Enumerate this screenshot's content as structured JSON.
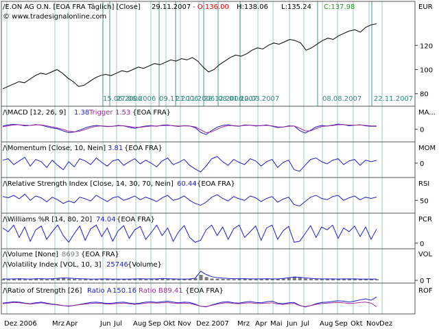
{
  "header": {
    "name": "/E.ON AG O.N. [EOA FRA Täglich] [Close]",
    "date": "29.11.2007",
    "open": "- O:136.00",
    "high": "H:138.06",
    "low": "L:135.24",
    "close": "C:137.98",
    "copyright": "© www.tradesignalonline.com",
    "currency": "EUR"
  },
  "colors": {
    "price": "#000000",
    "indicator": "#1c1ccc",
    "trigger": "#a0289a",
    "grid": "#2e8b80",
    "open": "#d40000",
    "close": "#1f9a1f",
    "value": "#1c1ccc",
    "volume_bar": "#7a7a7a"
  },
  "chart_data": {
    "type": "line",
    "time_axis": [
      "Dez 2006",
      "Mrz",
      "Apr",
      "Jun",
      "Jul",
      "Aug",
      "Sep",
      "Okt",
      "Nov",
      "Dez 2007",
      "Mrz",
      "Apr",
      "Mai",
      "Jun",
      "Jul",
      "Aug",
      "Sep",
      "Okt",
      "Nov",
      "Dez"
    ],
    "event_dates": [
      "15.06.2006",
      "27.06.2006",
      "09.11.2006",
      "21.11.2006",
      "28.12.2006",
      "08.01.2007",
      "12.03.2007",
      "08.08.2007",
      "22.11.2007"
    ],
    "panels": [
      {
        "id": "price",
        "yticks": [
          80,
          100,
          120
        ],
        "ylim": [
          73,
          144
        ],
        "series": [
          {
            "values": [
              84,
              86,
              88,
              90,
              89,
              92,
              95,
              97,
              96,
              98,
              100,
              97,
              93,
              90,
              86,
              87,
              90,
              93,
              95,
              96,
              95,
              97,
              99,
              98,
              100,
              102,
              101,
              103,
              105,
              104,
              106,
              108,
              107,
              109,
              108,
              110,
              107,
              102,
              98,
              100,
              104,
              107,
              110,
              112,
              111,
              113,
              116,
              118,
              117,
              120,
              122,
              121,
              123,
              125,
              124,
              122,
              116,
              118,
              121,
              124,
              126,
              125,
              128,
              130,
              132,
              133,
              131,
              135,
              137,
              138
            ]
          }
        ]
      },
      {
        "id": "macd",
        "label_left": "/\\MACD [12, 26, 9]",
        "label_right": "MA...",
        "indicator_text": "1.38",
        "trigger_label": "Trigger",
        "trigger_value": "1.53",
        "tag": "{EOA FRA}",
        "yticks": [
          0
        ],
        "ylim": [
          -4,
          5
        ],
        "series": [
          {
            "name": "MACD",
            "values": [
              1.5,
              2,
              2.3,
              2.1,
              1.6,
              1.8,
              2.2,
              1.9,
              1.2,
              0.6,
              0.2,
              -0.8,
              -1.6,
              -1.3,
              -0.4,
              0.6,
              1.4,
              1.8,
              1.5,
              1.2,
              1.4,
              1.8,
              1.6,
              0.9,
              0.4,
              1,
              1.5,
              1.7,
              1.4,
              1.9,
              2,
              1.6,
              1.3,
              1.7,
              1.5,
              0.8,
              -1.5,
              -2.5,
              -0.6,
              1,
              1.8,
              2.1,
              1.6,
              1.4,
              2,
              1.9,
              1.5,
              1.7,
              2,
              1.4,
              0.8,
              1,
              1.6,
              1.5,
              -0.6,
              -1.8,
              -0.5,
              1.1,
              1.8,
              1.5,
              1.9,
              2.4,
              2.2,
              1.6,
              1.9,
              2.1,
              1.6,
              1.4,
              1.38
            ]
          },
          {
            "name": "Trigger",
            "values": [
              1.2,
              1.6,
              2,
              2.1,
              1.9,
              1.8,
              2,
              2,
              1.6,
              1.1,
              0.6,
              -0.1,
              -0.9,
              -1.2,
              -0.9,
              -0.1,
              0.8,
              1.4,
              1.6,
              1.4,
              1.4,
              1.6,
              1.6,
              1.3,
              0.9,
              0.9,
              1.2,
              1.5,
              1.5,
              1.7,
              1.8,
              1.7,
              1.5,
              1.6,
              1.5,
              1.1,
              -0.3,
              -1.6,
              -1.2,
              0,
              1.1,
              1.7,
              1.7,
              1.5,
              1.8,
              1.9,
              1.7,
              1.7,
              1.8,
              1.6,
              1.1,
              1,
              1.4,
              1.5,
              0.5,
              -0.8,
              -0.8,
              0.3,
              1.3,
              1.5,
              1.7,
              2.1,
              2.2,
              1.9,
              1.9,
              2,
              1.8,
              1.6,
              1.53
            ]
          }
        ]
      },
      {
        "id": "mom",
        "label_left": "/\\Momentum [Close, 10, Nein]",
        "label_right": "MOM",
        "indicator_text": "3.81",
        "tag": "{EOA FRA}",
        "yticks": [
          0
        ],
        "ylim": [
          -14,
          14
        ],
        "series": [
          {
            "name": "Momentum",
            "values": [
              4,
              6,
              -2,
              3,
              8,
              -4,
              5,
              2,
              -6,
              4,
              -3,
              -9,
              2,
              -5,
              6,
              3,
              -2,
              7,
              1,
              -4,
              3,
              5,
              -3,
              2,
              6,
              -1,
              4,
              0,
              -5,
              3,
              7,
              -2,
              1,
              5,
              -3,
              -8,
              -12,
              -4,
              6,
              9,
              2,
              -3,
              5,
              1,
              -2,
              6,
              3,
              -4,
              2,
              5,
              -6,
              1,
              4,
              -9,
              -11,
              -3,
              5,
              7,
              2,
              -1,
              4,
              6,
              -2,
              3,
              5,
              -3,
              4,
              2,
              3.81
            ]
          }
        ]
      },
      {
        "id": "rsi",
        "label_left": "/\\Relative Strength Index [Close, 14, 30, 70, Nein]",
        "label_right": "RSI",
        "indicator_text": "60.44",
        "tag": "{EOA FRA}",
        "yticks": [
          50
        ],
        "ylim": [
          22,
          88
        ],
        "series": [
          {
            "name": "RSI",
            "values": [
              62,
              58,
              66,
              55,
              70,
              50,
              64,
              58,
              45,
              60,
              52,
              40,
              48,
              42,
              60,
              55,
              48,
              66,
              56,
              46,
              58,
              62,
              50,
              56,
              64,
              52,
              60,
              54,
              46,
              58,
              66,
              50,
              55,
              64,
              50,
              40,
              34,
              44,
              60,
              68,
              56,
              48,
              62,
              55,
              50,
              64,
              58,
              46,
              56,
              62,
              44,
              54,
              60,
              36,
              32,
              46,
              60,
              66,
              56,
              52,
              62,
              66,
              50,
              58,
              64,
              52,
              60,
              56,
              60.44
            ]
          }
        ]
      },
      {
        "id": "pcr",
        "label_left": "/\\Williams %R [14, 80, 20]",
        "label_right": "PCR",
        "indicator_text": "74.04",
        "tag": "{EOA FRA}",
        "yticks": [
          0
        ],
        "ylim": [
          -8,
          100
        ],
        "series": [
          {
            "name": "Williams %R",
            "values": [
              80,
              60,
              95,
              30,
              85,
              10,
              70,
              90,
              20,
              60,
              95,
              40,
              5,
              50,
              90,
              15,
              75,
              95,
              35,
              80,
              10,
              65,
              92,
              25,
              70,
              88,
              20,
              55,
              95,
              40,
              80,
              10,
              60,
              92,
              30,
              5,
              15,
              70,
              95,
              40,
              85,
              20,
              75,
              95,
              30,
              60,
              90,
              15,
              80,
              95,
              20,
              65,
              88,
              5,
              10,
              50,
              92,
              30,
              85,
              70,
              95,
              25,
              80,
              60,
              90,
              35,
              85,
              20,
              74.04
            ]
          }
        ]
      },
      {
        "id": "vol",
        "label_left": "/\\Volume [None]",
        "indicator_text": "8693",
        "tag": "{EOA FRA}",
        "label_left_2": "/\\Volatility Index [VOL, 10, 3]",
        "indicator_text_2": "25746",
        "tag_2": "{Volume}",
        "label_right": "VOL",
        "yticks": [
          "0 T"
        ],
        "ylim": [
          0,
          60
        ],
        "series": [
          {
            "name": "Volume",
            "values": [
              6,
              5,
              7,
              8,
              6,
              5,
              9,
              7,
              6,
              8,
              10,
              12,
              9,
              8,
              6,
              7,
              5,
              6,
              8,
              7,
              6,
              5,
              7,
              6,
              8,
              9,
              7,
              6,
              8,
              10,
              7,
              6,
              5,
              7,
              8,
              12,
              30,
              18,
              10,
              9,
              8,
              7,
              6,
              9,
              8,
              7,
              6,
              8,
              9,
              7,
              8,
              10,
              14,
              20,
              16,
              10,
              8,
              7,
              6,
              8,
              7,
              6,
              9,
              8,
              7,
              6,
              8,
              7,
              6
            ]
          },
          {
            "name": "Volatility Index",
            "values": [
              8,
              7,
              8,
              9,
              8,
              7,
              9,
              9,
              8,
              9,
              11,
              13,
              12,
              10,
              9,
              8,
              7,
              7,
              8,
              8,
              7,
              7,
              7,
              7,
              8,
              9,
              8,
              8,
              8,
              10,
              9,
              8,
              7,
              7,
              8,
              11,
              50,
              32,
              20,
              15,
              12,
              10,
              9,
              9,
              9,
              8,
              8,
              8,
              9,
              8,
              8,
              10,
              14,
              18,
              17,
              13,
              11,
              9,
              8,
              8,
              8,
              7,
              8,
              8,
              8,
              7,
              7,
              7,
              7
            ]
          }
        ]
      },
      {
        "id": "rof",
        "label_left": "/\\Ratio of Strength [26]",
        "label_right": "ROF",
        "ratio_a_label": "Ratio A",
        "ratio_a_value": "150.16",
        "ratio_b_label": "Ratio B",
        "ratio_b_value": "89.41",
        "tag": "{EOA FRA}",
        "ylim": [
          70,
          160
        ],
        "series": [
          {
            "name": "Ratio A",
            "values": [
              112,
              116,
              120,
              118,
              112,
              108,
              114,
              118,
              112,
              106,
              102,
              96,
              92,
              98,
              104,
              110,
              116,
              118,
              114,
              110,
              112,
              116,
              118,
              112,
              108,
              112,
              118,
              120,
              116,
              120,
              124,
              118,
              114,
              118,
              116,
              106,
              92,
              88,
              100,
              110,
              118,
              120,
              114,
              112,
              118,
              122,
              116,
              114,
              120,
              124,
              112,
              108,
              114,
              116,
              98,
              88,
              96,
              108,
              116,
              118,
              122,
              126,
              124,
              118,
              124,
              132,
              138,
              130,
              150.16
            ]
          },
          {
            "name": "Ratio B",
            "values": [
              108,
              112,
              116,
              114,
              110,
              106,
              110,
              114,
              108,
              104,
              100,
              96,
              94,
              98,
              102,
              106,
              110,
              112,
              110,
              106,
              108,
              110,
              112,
              108,
              104,
              108,
              112,
              114,
              112,
              114,
              116,
              112,
              110,
              112,
              110,
              102,
              92,
              90,
              98,
              106,
              112,
              114,
              110,
              108,
              112,
              114,
              110,
              110,
              112,
              114,
              106,
              104,
              108,
              110,
              96,
              90,
              96,
              104,
              110,
              112,
              114,
              116,
              114,
              110,
              112,
              116,
              118,
              112,
              89.41
            ]
          }
        ]
      }
    ]
  }
}
